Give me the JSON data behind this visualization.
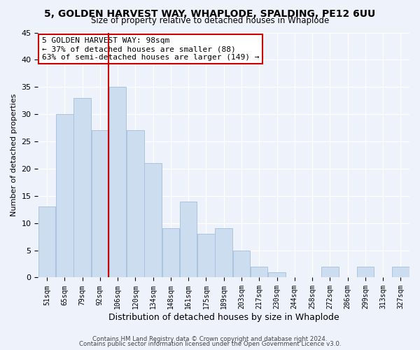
{
  "title": "5, GOLDEN HARVEST WAY, WHAPLODE, SPALDING, PE12 6UU",
  "subtitle": "Size of property relative to detached houses in Whaplode",
  "xlabel": "Distribution of detached houses by size in Whaplode",
  "ylabel": "Number of detached properties",
  "bar_color": "#ccddf0",
  "bar_edge_color": "#aac4e0",
  "bins": [
    "51sqm",
    "65sqm",
    "79sqm",
    "92sqm",
    "106sqm",
    "120sqm",
    "134sqm",
    "148sqm",
    "161sqm",
    "175sqm",
    "189sqm",
    "203sqm",
    "217sqm",
    "230sqm",
    "244sqm",
    "258sqm",
    "272sqm",
    "286sqm",
    "299sqm",
    "313sqm",
    "327sqm"
  ],
  "values": [
    13,
    30,
    33,
    27,
    35,
    27,
    21,
    9,
    14,
    8,
    9,
    5,
    2,
    1,
    0,
    0,
    2,
    0,
    2,
    0,
    2
  ],
  "ylim": [
    0,
    45
  ],
  "yticks": [
    0,
    5,
    10,
    15,
    20,
    25,
    30,
    35,
    40,
    45
  ],
  "vline_x": 3.5,
  "vline_color": "#cc0000",
  "annotation_line1": "5 GOLDEN HARVEST WAY: 98sqm",
  "annotation_line2": "← 37% of detached houses are smaller (88)",
  "annotation_line3": "63% of semi-detached houses are larger (149) →",
  "annotation_box_color": "#ffffff",
  "annotation_box_edge": "#cc0000",
  "footer1": "Contains HM Land Registry data © Crown copyright and database right 2024.",
  "footer2": "Contains public sector information licensed under the Open Government Licence v3.0.",
  "background_color": "#eef2fa",
  "grid_color": "#ffffff"
}
